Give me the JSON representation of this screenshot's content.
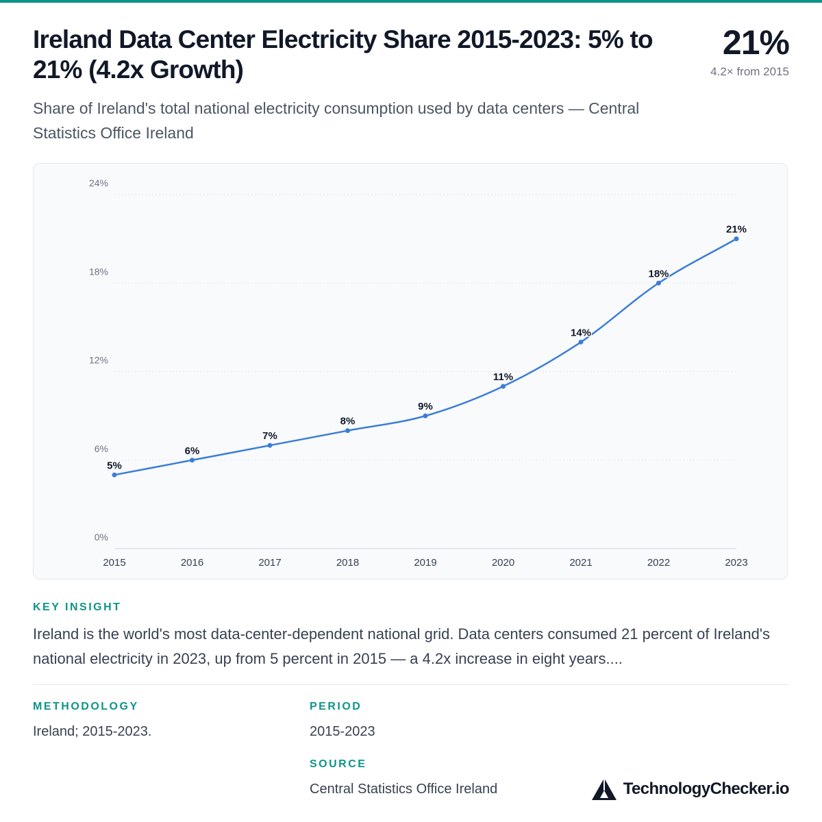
{
  "header": {
    "title": "Ireland Data Center Electricity Share 2015-2023: 5% to 21% (4.2x Growth)",
    "subtitle": "Share of Ireland's total national electricity consumption used by data centers — Central Statistics Office Ireland",
    "kpi_value": "21%",
    "kpi_sub": "4.2× from 2015"
  },
  "colors": {
    "accent": "#0d9488",
    "line": "#3b7dd8",
    "text": "#111827",
    "muted": "#6b7280"
  },
  "chart_data": {
    "type": "line",
    "x": [
      "2015",
      "2016",
      "2017",
      "2018",
      "2019",
      "2020",
      "2021",
      "2022",
      "2023"
    ],
    "series": [
      {
        "values": [
          5,
          6,
          7,
          8,
          9,
          11,
          14,
          18,
          21
        ],
        "labels": [
          "5%",
          "6%",
          "7%",
          "8%",
          "9%",
          "11%",
          "14%",
          "18%",
          "21%"
        ]
      }
    ],
    "y_ticks": [
      "0%",
      "6%",
      "12%",
      "18%",
      "24%"
    ],
    "ylim": [
      0,
      24
    ],
    "grid": true,
    "title": "",
    "xlabel": "",
    "ylabel": ""
  },
  "insight": {
    "label": "KEY INSIGHT",
    "text": "Ireland is the world's most data-center-dependent national grid. Data centers consumed 21 percent of Ireland's national electricity in 2023, up from 5 percent in 2015 — a 4.2x increase in eight years...."
  },
  "meta": {
    "methodology_label": "METHODOLOGY",
    "methodology_value": "Ireland; 2015-2023.",
    "period_label": "PERIOD",
    "period_value": "2015-2023",
    "source_label": "SOURCE",
    "source_value": "Central Statistics Office Ireland"
  },
  "brand": {
    "name": "TechnologyChecker.io",
    "icon": "triangle-logo-icon"
  }
}
